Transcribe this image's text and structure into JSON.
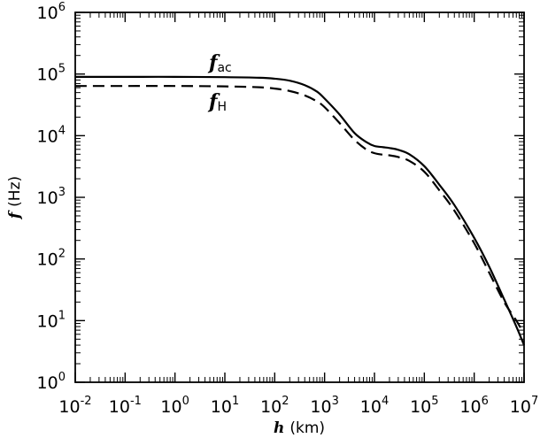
{
  "chart_data": {
    "type": "line",
    "title": "",
    "x_scale": "log",
    "y_scale": "log",
    "xlim": [
      0.01,
      10000000
    ],
    "ylim": [
      1,
      1000000
    ],
    "xlabel": {
      "symbol": "h",
      "unit": "(km)"
    },
    "ylabel": {
      "symbol": "f",
      "unit": "(Hz)"
    },
    "x_tick_exponents": [
      "-2",
      "-1",
      "0",
      "1",
      "2",
      "3",
      "4",
      "5",
      "6",
      "7"
    ],
    "y_tick_exponents": [
      "0",
      "1",
      "2",
      "3",
      "4",
      "5",
      "6"
    ],
    "tick_base": "10",
    "series": [
      {
        "name": "f_ac",
        "label_symbol": "f",
        "label_subscript": "ac",
        "style": "solid",
        "color": "#000000",
        "x": [
          0.01,
          0.1,
          1,
          10,
          50,
          100,
          200,
          400,
          700,
          1000,
          2000,
          4000,
          7000,
          10000,
          15000,
          20000,
          30000,
          50000,
          100000,
          200000,
          400000,
          1000000,
          2000000,
          4000000,
          7000000,
          10000000
        ],
        "y": [
          90000,
          90000,
          90000,
          89000,
          87000,
          84000,
          78000,
          66000,
          52000,
          40000,
          22000,
          11000,
          7800,
          6800,
          6500,
          6300,
          5900,
          5000,
          3200,
          1600,
          750,
          220,
          75,
          22,
          8,
          4
        ]
      },
      {
        "name": "f_H",
        "label_symbol": "f",
        "label_subscript": "H",
        "style": "dashed",
        "color": "#000000",
        "x": [
          0.01,
          0.1,
          1,
          10,
          50,
          100,
          200,
          400,
          700,
          1000,
          2000,
          4000,
          7000,
          10000,
          15000,
          20000,
          30000,
          50000,
          100000,
          200000,
          400000,
          1000000,
          2000000,
          4000000,
          7000000,
          10000000
        ],
        "y": [
          64000,
          64000,
          64000,
          63000,
          61000,
          58000,
          53000,
          45000,
          36000,
          29000,
          16000,
          8500,
          5900,
          5200,
          4900,
          4800,
          4500,
          3900,
          2600,
          1300,
          610,
          180,
          60,
          20,
          10,
          6
        ]
      }
    ]
  }
}
